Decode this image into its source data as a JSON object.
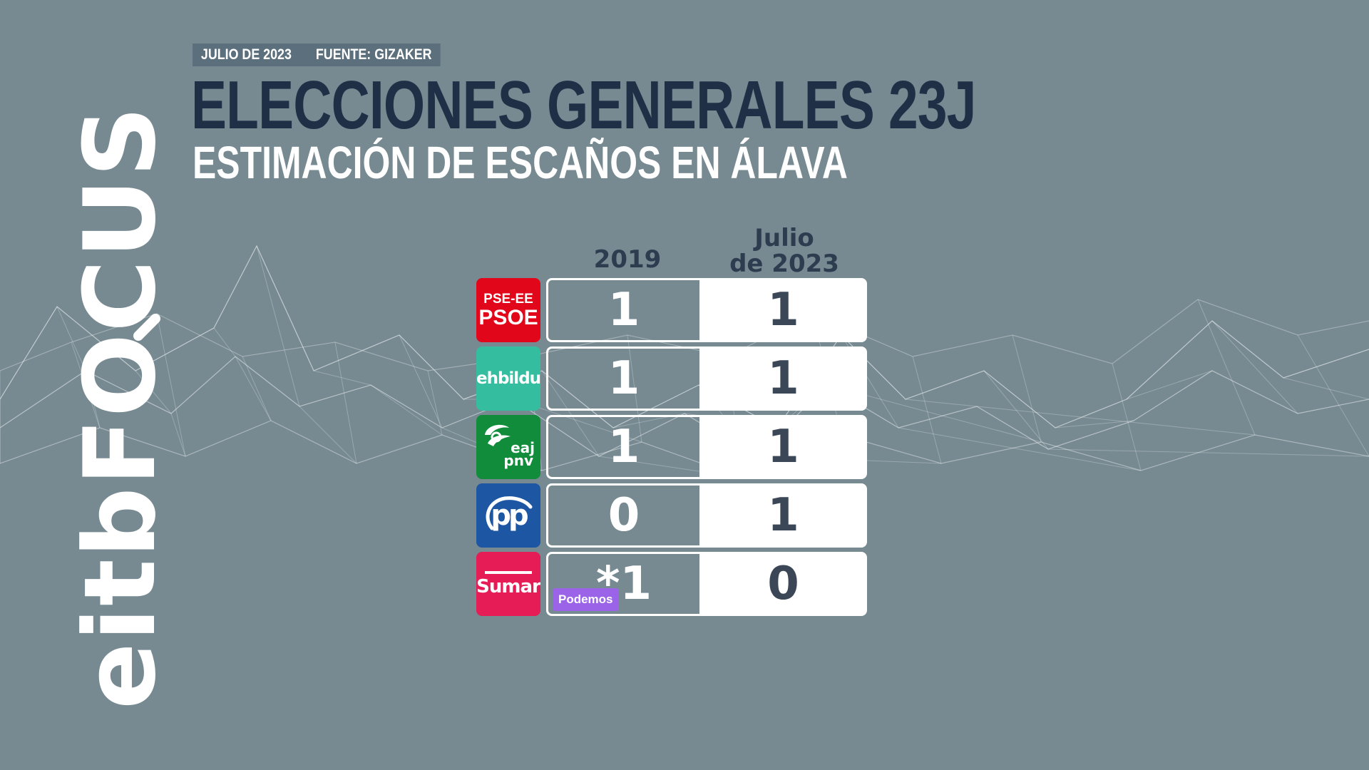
{
  "header": {
    "date": "JULIO DE 2023",
    "source": "FUENTE: GIZAKER",
    "title": "ELECCIONES GENERALES 23J",
    "subtitle": "ESTIMACIÓN DE ESCAÑOS EN ÁLAVA"
  },
  "brand": {
    "prefix": "eitbF",
    "o": "O",
    "suffix": "CUS"
  },
  "columns": {
    "c2019": "2019",
    "c2023_line1": "Julio",
    "c2023_line2": "de 2023"
  },
  "colors": {
    "background": "#778a92",
    "title": "#1f2f45",
    "psoe": "#e2061b",
    "bildu": "#35bd9f",
    "pnv": "#108c3b",
    "pp": "#1d56a3",
    "sumar": "#e51c55",
    "podemos": "#9b63e8"
  },
  "chart_data": {
    "type": "table",
    "title": "ESTIMACIÓN DE ESCAÑOS EN ÁLAVA",
    "columns": [
      "2019",
      "Julio de 2023"
    ],
    "rows": [
      {
        "party": "PSE-EE PSOE",
        "v2019": "1",
        "v2023": "1"
      },
      {
        "party": "ehbildu",
        "v2019": "1",
        "v2023": "1"
      },
      {
        "party": "eaj pnv",
        "v2019": "1",
        "v2023": "1"
      },
      {
        "party": "pp",
        "v2019": "0",
        "v2023": "1"
      },
      {
        "party": "Sumar",
        "v2019": "*1",
        "v2023": "0",
        "note_2019": "Podemos"
      }
    ]
  },
  "logos": {
    "psoe_top": "PSE-EE",
    "psoe_bottom": "PSOE",
    "bildu": "ehbildu",
    "pnv_eaj": "eaj",
    "pnv_pnv": "pnv",
    "pp": "pp",
    "sumar": "Sumar"
  }
}
